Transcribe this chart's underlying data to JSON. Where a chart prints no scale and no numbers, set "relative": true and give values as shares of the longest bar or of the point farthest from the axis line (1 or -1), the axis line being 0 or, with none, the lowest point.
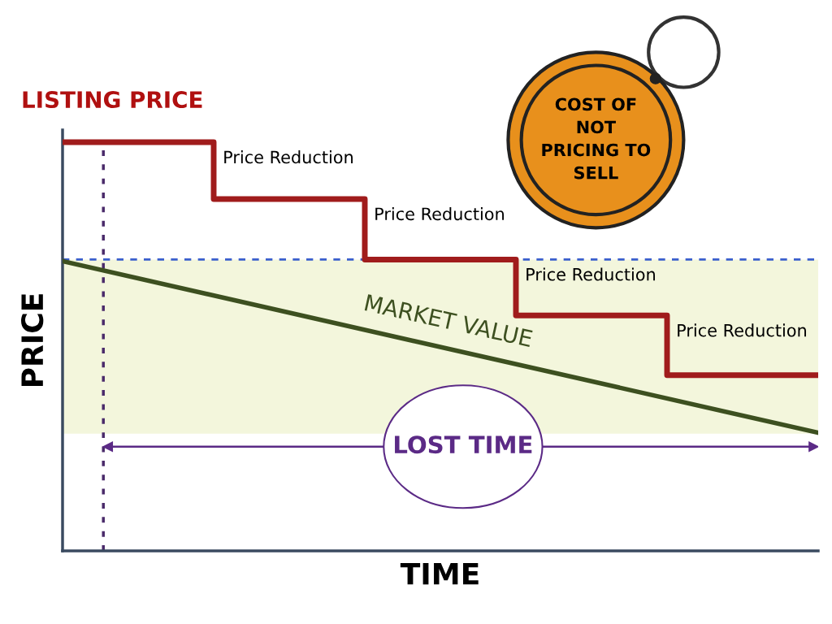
{
  "chart_data": {
    "type": "step",
    "title": "LISTING PRICE",
    "xlabel": "TIME",
    "ylabel": "PRICE",
    "relative": true,
    "categories": [
      null,
      null,
      null,
      null,
      null,
      null
    ],
    "series": [
      {
        "color": "#a01c1c",
        "values": [
          1,
          0.861,
          0.713,
          0.576,
          0.43,
          0.43
        ]
      },
      {
        "type": "line",
        "name": "MARKET VALUE",
        "color": "#3d5020",
        "values": [
          0.709,
          null,
          null,
          null,
          null,
          0.289
        ]
      }
    ],
    "bands": [
      {
        "axis": "y",
        "from": 0.287,
        "to": 0.713,
        "color": "#f3f6dc"
      }
    ],
    "ref_lines": [
      {
        "axis": "y",
        "value": 0.713,
        "color": "#3a5fcd",
        "line_style": "dashed"
      },
      {
        "axis": "y",
        "value": 0.255,
        "label": "LOST TIME",
        "color": "#5b2a86"
      }
    ],
    "annotations": [
      "Price Reduction",
      "Price Reduction",
      "Price Reduction",
      "Price Reduction",
      "COST OF NOT PRICING TO SELL"
    ],
    "legend": false
  }
}
